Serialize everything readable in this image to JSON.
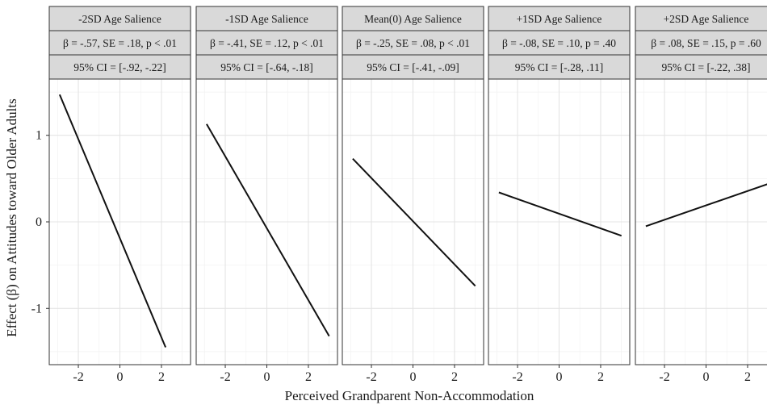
{
  "chart_data": {
    "type": "line",
    "facet_layout": "1 row x 5 columns",
    "xlabel": "Perceived Grandparent Non-Accommodation",
    "ylabel": "Effect (β) on Attitudes toward Older Adults",
    "xlim": [
      -3.4,
      3.4
    ],
    "ylim": [
      -1.65,
      1.65
    ],
    "x_ticks": [
      -2,
      0,
      2
    ],
    "x_tick_labels": [
      "-2",
      "0",
      "2"
    ],
    "y_ticks": [
      -1,
      0,
      1
    ],
    "y_tick_labels": [
      "-1",
      "0",
      "1"
    ],
    "grid": true,
    "panels": [
      {
        "title": "-2SD Age Salience",
        "stat": "β = -.57, SE = .18, p < .01",
        "ci": "95% CI = [-.92, -.22]",
        "x": [
          -2.9,
          2.2
        ],
        "y": [
          1.47,
          -1.45
        ]
      },
      {
        "title": "-1SD Age Salience",
        "stat": "β = -.41, SE = .12, p < .01",
        "ci": "95% CI = [-.64, -.18]",
        "x": [
          -2.9,
          3.0
        ],
        "y": [
          1.13,
          -1.32
        ]
      },
      {
        "title": "Mean(0) Age Salience",
        "stat": "β = -.25, SE = .08, p < .01",
        "ci": "95% CI = [-.41, -.09]",
        "x": [
          -2.9,
          3.0
        ],
        "y": [
          0.73,
          -0.74
        ]
      },
      {
        "title": "+1SD Age Salience",
        "stat": "β = -.08, SE = .10, p = .40",
        "ci": "95% CI = [-.28, .11]",
        "x": [
          -2.9,
          3.0
        ],
        "y": [
          0.34,
          -0.16
        ]
      },
      {
        "title": "+2SD Age Salience",
        "stat": "β = .08, SE = .15, p = .60",
        "ci": "95% CI = [-.22, .38]",
        "x": [
          -2.9,
          3.0
        ],
        "y": [
          -0.05,
          0.44
        ]
      }
    ]
  }
}
